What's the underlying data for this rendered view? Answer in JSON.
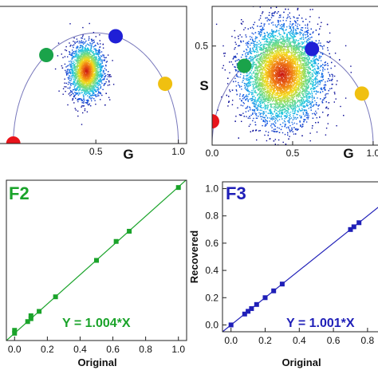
{
  "chart_data": [
    {
      "type": "scatter",
      "panel": "top-left",
      "xlabel": "G",
      "xlim": [
        -0.1,
        1.05
      ],
      "ylim": [
        0,
        0.62
      ],
      "x_ticks": [
        "0.5",
        "1.0"
      ],
      "semicircle": true,
      "reference_markers": [
        {
          "x": 0.0,
          "y": 0.0,
          "color": "#e8141b"
        },
        {
          "x": 0.2,
          "y": 0.4,
          "color": "#1aa34a"
        },
        {
          "x": 0.62,
          "y": 0.485,
          "color": "#1f1fd6"
        },
        {
          "x": 0.92,
          "y": 0.27,
          "color": "#f0c010"
        }
      ],
      "cloud": {
        "center": [
          0.44,
          0.33
        ],
        "spread": [
          0.05,
          0.06
        ],
        "points": 2500
      }
    },
    {
      "type": "scatter",
      "panel": "top-right",
      "xlabel": "G",
      "ylabel": "S",
      "xlim": [
        0,
        1.05
      ],
      "ylim": [
        0,
        0.7
      ],
      "x_ticks": [
        "0.0",
        "0.5",
        "1.0"
      ],
      "y_ticks": [
        "0.5"
      ],
      "semicircle": true,
      "reference_markers": [
        {
          "x": 0.0,
          "y": 0.12,
          "color": "#e8141b"
        },
        {
          "x": 0.2,
          "y": 0.4,
          "color": "#1aa34a"
        },
        {
          "x": 0.62,
          "y": 0.485,
          "color": "#1f1fd6"
        },
        {
          "x": 0.93,
          "y": 0.26,
          "color": "#f0c010"
        }
      ],
      "cloud": {
        "center": [
          0.43,
          0.36
        ],
        "spread": [
          0.12,
          0.12
        ],
        "points": 7000
      }
    },
    {
      "type": "line",
      "panel": "F2",
      "label": "F2",
      "xlabel": "Original",
      "xlim": [
        -0.05,
        1.05
      ],
      "ylim": [
        -0.05,
        1.05
      ],
      "x_ticks": [
        "0.0",
        "0.2",
        "0.4",
        "0.6",
        "0.8",
        "1.0"
      ],
      "color": "#1aa32a",
      "equation": "Y = 1.004*X",
      "slope": 1.004,
      "x": [
        0.0,
        0.0,
        0.08,
        0.1,
        0.1,
        0.15,
        0.25,
        0.5,
        0.62,
        0.7,
        1.0
      ],
      "y": [
        0.0,
        0.02,
        0.08,
        0.1,
        0.12,
        0.15,
        0.25,
        0.5,
        0.63,
        0.7,
        1.0
      ]
    },
    {
      "type": "line",
      "panel": "F3",
      "label": "F3",
      "xlabel": "Original",
      "ylabel": "Recovered",
      "xlim": [
        -0.05,
        0.88
      ],
      "ylim": [
        -0.05,
        1.05
      ],
      "x_ticks": [
        "0.0",
        "0.2",
        "0.4",
        "0.6",
        "0.8"
      ],
      "y_ticks": [
        "0.0",
        "0.2",
        "0.4",
        "0.6",
        "0.8",
        "1.0"
      ],
      "color": "#1f1fb8",
      "equation": "Y = 1.001*X",
      "slope": 1.001,
      "x": [
        0.0,
        0.08,
        0.1,
        0.12,
        0.15,
        0.2,
        0.25,
        0.3,
        0.7,
        0.72,
        0.75
      ],
      "y": [
        0.0,
        0.08,
        0.1,
        0.12,
        0.15,
        0.2,
        0.25,
        0.3,
        0.7,
        0.72,
        0.75
      ]
    }
  ]
}
